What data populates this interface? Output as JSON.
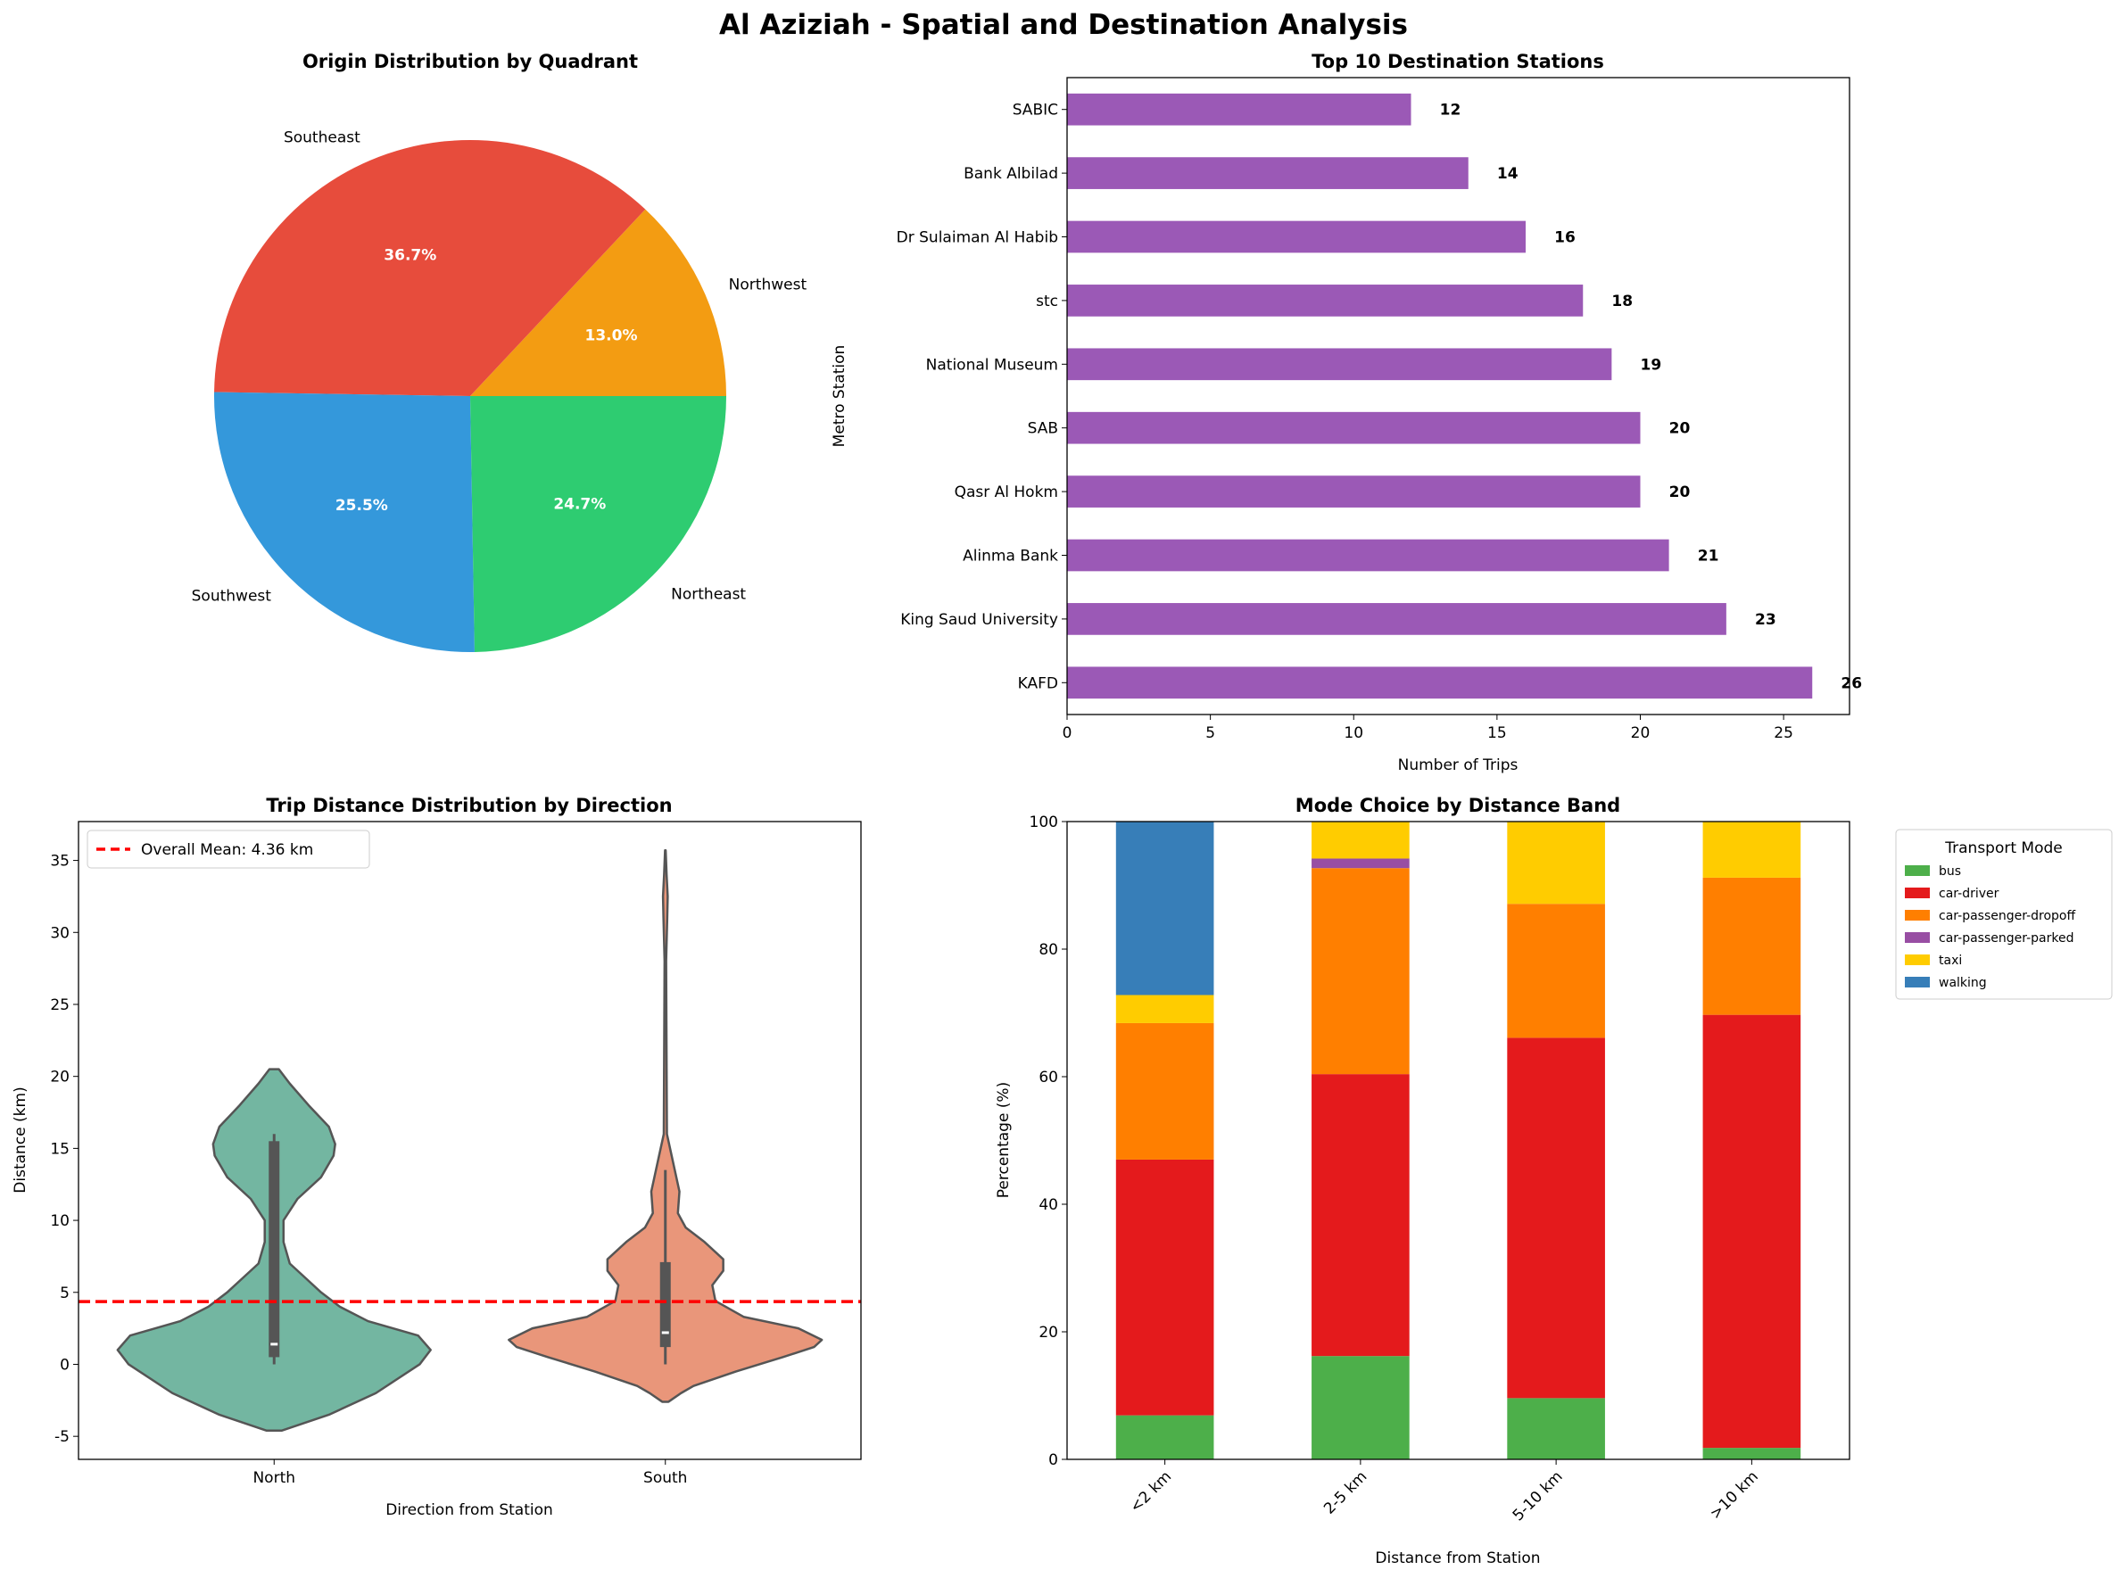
{
  "title": "Al Aziziah - Spatial and Destination Analysis",
  "chart_data": [
    {
      "type": "pie",
      "title": "Origin Distribution by Quadrant",
      "labels": [
        "Northwest",
        "Southeast",
        "Southwest",
        "Northeast"
      ],
      "values": [
        13.0,
        36.7,
        25.5,
        24.7
      ],
      "pct_labels": [
        "13.0%",
        "36.7%",
        "25.5%",
        "24.7%"
      ],
      "colors": [
        "#f39c12",
        "#e74c3c",
        "#3498db",
        "#2ecc71"
      ]
    },
    {
      "type": "bar",
      "orientation": "horizontal",
      "title": "Top 10 Destination Stations",
      "xlabel": "Number of Trips",
      "ylabel": "Metro Station",
      "categories": [
        "KAFD",
        "King Saud University",
        "Alinma Bank",
        "Qasr Al Hokm",
        "SAB",
        "National Museum",
        "stc",
        "Dr Sulaiman Al Habib",
        "Bank Albilad",
        "SABIC"
      ],
      "values": [
        26,
        23,
        21,
        20,
        20,
        19,
        18,
        16,
        14,
        12
      ],
      "xlim": [
        0,
        27.3
      ],
      "xticks": [
        0,
        5,
        10,
        15,
        20,
        25
      ],
      "color": "#9b59b6"
    },
    {
      "type": "violin",
      "title": "Trip Distance Distribution by Direction",
      "xlabel": "Direction from Station",
      "ylabel": "Distance (km)",
      "ylim": [
        -6.6,
        37.7
      ],
      "yticks": [
        -5,
        0,
        5,
        10,
        15,
        20,
        25,
        30,
        35
      ],
      "mean_line": {
        "value": 4.36,
        "label": "Overall Mean: 4.36 km",
        "color": "#ff0000"
      },
      "groups": [
        {
          "name": "North",
          "color": "#73b6a1",
          "median": 1.4,
          "q1": 0.5,
          "q3": 15.5,
          "whisker_low": 0,
          "whisker_high": 16,
          "density": [
            [
              -4.6,
              0.05
            ],
            [
              -3.5,
              0.35
            ],
            [
              -2,
              0.65
            ],
            [
              0,
              0.93
            ],
            [
              1,
              1
            ],
            [
              2,
              0.92
            ],
            [
              3,
              0.6
            ],
            [
              4,
              0.42
            ],
            [
              5,
              0.3
            ],
            [
              6,
              0.2
            ],
            [
              7,
              0.1
            ],
            [
              8.5,
              0.06
            ],
            [
              10,
              0.06
            ],
            [
              11.5,
              0.15
            ],
            [
              13,
              0.3
            ],
            [
              14.5,
              0.38
            ],
            [
              15.3,
              0.39
            ],
            [
              16.5,
              0.35
            ],
            [
              18,
              0.22
            ],
            [
              19.5,
              0.1
            ],
            [
              20.5,
              0.03
            ]
          ]
        },
        {
          "name": "South",
          "color": "#e9967a",
          "median": 2.2,
          "q1": 1.2,
          "q3": 7.1,
          "whisker_low": 0,
          "whisker_high": 13.5,
          "density": [
            [
              -2.6,
              0.02
            ],
            [
              -2,
              0.1
            ],
            [
              -1.5,
              0.18
            ],
            [
              -0.5,
              0.45
            ],
            [
              0.5,
              0.75
            ],
            [
              1.2,
              0.95
            ],
            [
              1.7,
              1
            ],
            [
              2.5,
              0.85
            ],
            [
              3.3,
              0.5
            ],
            [
              4.4,
              0.32
            ],
            [
              5.5,
              0.3
            ],
            [
              6.5,
              0.37
            ],
            [
              7.3,
              0.37
            ],
            [
              8.5,
              0.25
            ],
            [
              9.5,
              0.13
            ],
            [
              10.5,
              0.08
            ],
            [
              12,
              0.09
            ],
            [
              13,
              0.07
            ],
            [
              14.5,
              0.04
            ],
            [
              16,
              0.01
            ],
            [
              28,
              0.005
            ],
            [
              31,
              0.012
            ],
            [
              32.5,
              0.015
            ],
            [
              34,
              0.008
            ],
            [
              35.7,
              0.002
            ]
          ]
        }
      ]
    },
    {
      "type": "bar",
      "stacked": true,
      "title": "Mode Choice by Distance Band",
      "xlabel": "Distance from Station",
      "ylabel": "Percentage (%)",
      "ylim": [
        0,
        100
      ],
      "yticks": [
        0,
        20,
        40,
        60,
        80,
        100
      ],
      "categories": [
        "<2 km",
        "2-5 km",
        "5-10 km",
        ">10 km"
      ],
      "legend_title": "Transport Mode",
      "legend_position": "outside-right",
      "series": [
        {
          "name": "bus",
          "color": "#4daf4a",
          "values": [
            6.9,
            16.2,
            9.6,
            1.8
          ]
        },
        {
          "name": "car-driver",
          "color": "#e41a1c",
          "values": [
            40.1,
            44.2,
            56.5,
            67.9
          ]
        },
        {
          "name": "car-passenger-dropoff",
          "color": "#ff7f00",
          "values": [
            21.4,
            32.3,
            21.0,
            21.5
          ]
        },
        {
          "name": "car-passenger-parked",
          "color": "#984ea3",
          "values": [
            0,
            1.5,
            0,
            0
          ]
        },
        {
          "name": "taxi",
          "color": "#ffcc00",
          "values": [
            4.4,
            5.8,
            12.9,
            8.8
          ]
        },
        {
          "name": "walking",
          "color": "#377eb8",
          "values": [
            27.2,
            0,
            0,
            0
          ]
        }
      ]
    }
  ]
}
